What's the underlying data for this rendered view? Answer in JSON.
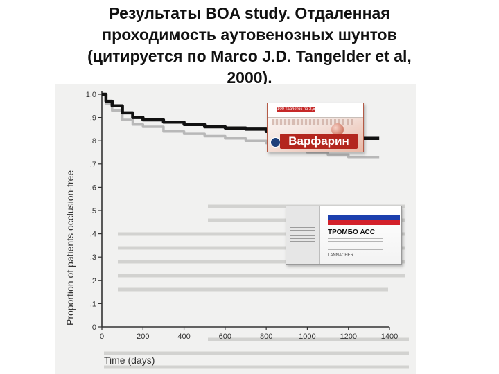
{
  "slide": {
    "title_lines": [
      "Результаты BOA study. Отдаленная",
      "проходимость аутовенозных шунтов",
      "(цитируется по Marco J.D. Tangelder et al,",
      "2000)."
    ]
  },
  "chart_data": {
    "type": "line",
    "title": "",
    "xlabel": "Time (days)",
    "ylabel": "Proportion of patients occlusion-free",
    "xlim": [
      0,
      1400
    ],
    "ylim": [
      0,
      1.0
    ],
    "x_ticks": [
      0,
      200,
      400,
      600,
      800,
      1000,
      1200,
      1400
    ],
    "y_ticks": [
      0,
      0.1,
      0.2,
      0.3,
      0.4,
      0.5,
      0.6,
      0.7,
      0.8,
      0.9,
      1.0
    ],
    "y_tick_labels": [
      "0",
      ".1",
      ".2",
      ".3",
      ".4",
      ".5",
      ".6",
      ".7",
      ".8",
      ".9",
      "1.0"
    ],
    "grid": false,
    "series": [
      {
        "color": "#111111",
        "x": [
          0,
          20,
          50,
          100,
          150,
          200,
          300,
          400,
          500,
          600,
          700,
          800,
          900,
          1000,
          1100,
          1130,
          1200,
          1250,
          1300,
          1350
        ],
        "y": [
          1.0,
          0.97,
          0.95,
          0.92,
          0.9,
          0.89,
          0.88,
          0.87,
          0.86,
          0.855,
          0.85,
          0.84,
          0.835,
          0.83,
          0.83,
          0.81,
          0.81,
          0.81,
          0.81,
          0.81
        ]
      },
      {
        "color": "#b8b8b8",
        "x": [
          0,
          20,
          50,
          100,
          150,
          200,
          300,
          400,
          500,
          600,
          700,
          800,
          900,
          1000,
          1100,
          1200,
          1250,
          1300,
          1350
        ],
        "y": [
          1.0,
          0.96,
          0.93,
          0.89,
          0.87,
          0.86,
          0.84,
          0.83,
          0.82,
          0.81,
          0.8,
          0.79,
          0.77,
          0.75,
          0.74,
          0.73,
          0.73,
          0.73,
          0.73
        ]
      }
    ]
  },
  "images": {
    "warfarin_box": {
      "label": "Варфарин",
      "top_text": "100 таблеток по 2,5 мг",
      "color": "#b3261e"
    },
    "trombo_box": {
      "label": "ТРОМБО АСС",
      "maker": "LANNACHER",
      "colors": [
        "#ffffff",
        "#1c3fae",
        "#d3202a"
      ]
    }
  }
}
